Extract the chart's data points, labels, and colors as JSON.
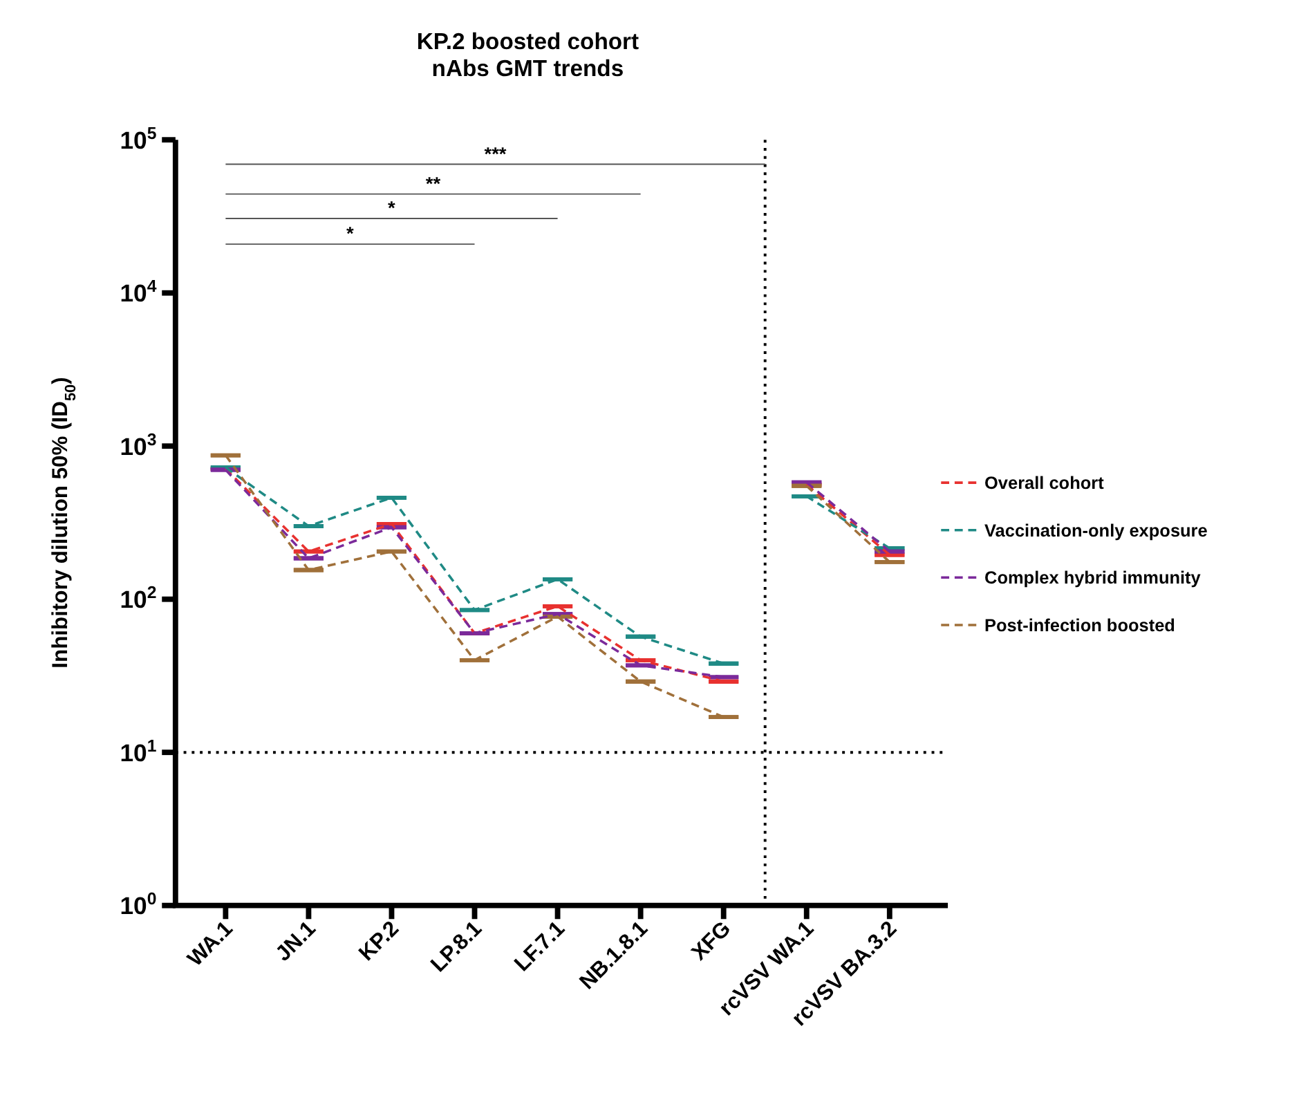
{
  "chart_data": {
    "type": "line",
    "title": "KP.2 boosted cohort\nnAbs GMT trends",
    "ylabel": "Inhibitory dilution 50% (ID$_{50}$)",
    "categories": [
      "WA.1",
      "JN.1",
      "KP.2",
      "LP.8.1",
      "LF.7.1",
      "NB.1.8.1",
      "XFG",
      "rcVSV WA.1",
      "rcVSV BA.3.2"
    ],
    "log": "y",
    "ylim": [
      1,
      100000
    ],
    "yticks": [
      {
        "value": 1,
        "label": "10$^{0}$"
      },
      {
        "value": 10,
        "label": "10$^{1}$"
      },
      {
        "value": 100,
        "label": "10$^{2}$"
      },
      {
        "value": 1000,
        "label": "10$^{3}$"
      },
      {
        "value": 10000,
        "label": "10$^{4}$"
      },
      {
        "value": 100000,
        "label": "10$^{5}$"
      }
    ],
    "grid": false,
    "legend": "right",
    "line_style": "dashed",
    "series": [
      {
        "name": "Overall cohort",
        "color": "#e8312f",
        "values": [
          710,
          205,
          310,
          60,
          90,
          40,
          29,
          null,
          null
        ],
        "errors": [
          0,
          0,
          0,
          0,
          0,
          0,
          0,
          null,
          null
        ]
      },
      {
        "name": "Vaccination-only exposure",
        "color": "#1f8a85",
        "values": [
          725,
          300,
          460,
          85,
          135,
          57,
          38,
          null,
          null
        ],
        "errors": [
          0,
          0,
          0,
          0,
          0,
          0,
          0,
          null,
          null
        ]
      },
      {
        "name": "Complex hybrid immunity",
        "color": "#7b2a9a",
        "values": [
          700,
          185,
          295,
          60,
          80,
          37,
          31,
          null,
          null
        ],
        "errors": [
          0,
          0,
          0,
          0,
          0,
          0,
          0,
          null,
          null
        ]
      },
      {
        "name": "Post-infection boosted",
        "color": "#a0703a",
        "values": [
          870,
          155,
          205,
          40,
          77,
          29,
          17,
          null,
          null
        ],
        "errors": [
          0,
          0,
          0,
          0,
          0,
          0,
          0,
          null,
          null
        ]
      },
      {
        "color": "#e8312f",
        "values": [
          null,
          null,
          null,
          null,
          null,
          null,
          null,
          560,
          195
        ],
        "errors": [
          null,
          null,
          null,
          null,
          null,
          null,
          null,
          0,
          0
        ]
      },
      {
        "color": "#1f8a85",
        "values": [
          null,
          null,
          null,
          null,
          null,
          null,
          null,
          470,
          215
        ],
        "errors": [
          null,
          null,
          null,
          null,
          null,
          null,
          null,
          0,
          0
        ]
      },
      {
        "color": "#7b2a9a",
        "values": [
          null,
          null,
          null,
          null,
          null,
          null,
          null,
          580,
          205
        ],
        "errors": [
          null,
          null,
          null,
          null,
          null,
          null,
          null,
          0,
          0
        ]
      },
      {
        "color": "#a0703a",
        "values": [
          null,
          null,
          null,
          null,
          null,
          null,
          null,
          550,
          175
        ],
        "errors": [
          null,
          null,
          null,
          null,
          null,
          null,
          null,
          0,
          0
        ]
      }
    ],
    "ref_lines": [
      {
        "axis": "y",
        "value": 10,
        "line_style": "dotted"
      }
    ],
    "annotations": [
      "*",
      "*",
      "**",
      "***"
    ]
  }
}
